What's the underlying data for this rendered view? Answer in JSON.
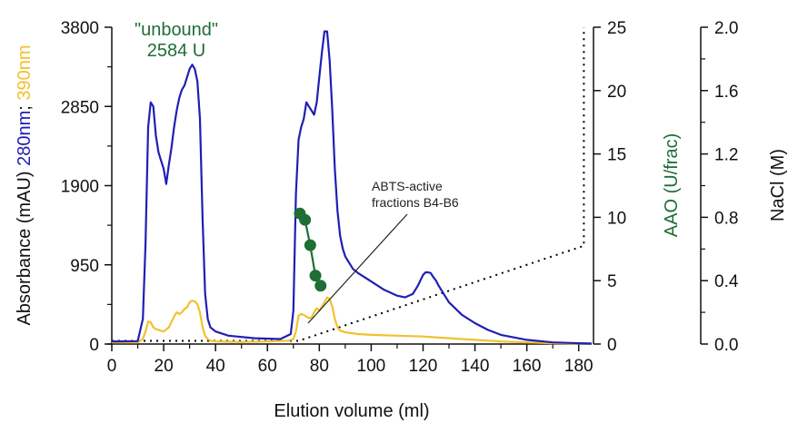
{
  "chart_data": {
    "type": "line",
    "xlabel": "Elution volume (ml)",
    "xlim": [
      0,
      185
    ],
    "xticks": [
      0,
      20,
      40,
      60,
      80,
      100,
      120,
      140,
      160,
      180
    ],
    "y_left": {
      "label_parts": [
        {
          "text": "Absorbance (mAU) ",
          "color": "#000000"
        },
        {
          "text": "280nm",
          "color": "#1f1fb4"
        },
        {
          "text": "; ",
          "color": "#000000"
        },
        {
          "text": "390nm",
          "color": "#f2c12e"
        }
      ],
      "ylim": [
        0,
        3800
      ],
      "ticks": [
        0,
        950,
        1900,
        2850,
        3800
      ]
    },
    "y_right1": {
      "label": "AAO (U/frac)",
      "color": "#1e6e36",
      "ylim": [
        0,
        25
      ],
      "ticks": [
        0,
        5,
        10,
        15,
        20,
        25
      ]
    },
    "y_right2": {
      "label": "NaCl (M)",
      "ylim": [
        0,
        2.0
      ],
      "ticks": [
        "0.0",
        "0.4",
        "0.8",
        "1.2",
        "1.6",
        "2.0"
      ]
    },
    "annotations": {
      "unbound_line1": "\"unbound\"",
      "unbound_line2": "2584 U",
      "abts_line1": "ABTS-active",
      "abts_line2": "fractions B4-B6"
    },
    "series": [
      {
        "name": "280nm",
        "axis": "left",
        "color": "#1f1fb4",
        "x": [
          0,
          10,
          12,
          13,
          14,
          15,
          16,
          17,
          18,
          19,
          20,
          21,
          22,
          23,
          24,
          25,
          26,
          27,
          28,
          29,
          30,
          31,
          32,
          33,
          34,
          35,
          36,
          37,
          38,
          40,
          45,
          55,
          65,
          69,
          70,
          71,
          72,
          73,
          74,
          75,
          76,
          77,
          78,
          79,
          80,
          81,
          82,
          83,
          84,
          85,
          86,
          87,
          88,
          89,
          90,
          91,
          92,
          93,
          95,
          100,
          105,
          110,
          113,
          116,
          118,
          120,
          121,
          122,
          123,
          124,
          125,
          126,
          128,
          130,
          135,
          140,
          145,
          150,
          160,
          170,
          180,
          185
        ],
        "y": [
          30,
          35,
          300,
          1200,
          2600,
          2900,
          2850,
          2500,
          2300,
          2200,
          2100,
          1920,
          2150,
          2350,
          2600,
          2800,
          2950,
          3050,
          3100,
          3200,
          3300,
          3350,
          3300,
          3150,
          2700,
          1500,
          600,
          300,
          200,
          150,
          100,
          70,
          60,
          120,
          400,
          1800,
          2450,
          2600,
          2700,
          2900,
          2850,
          2800,
          2750,
          2900,
          3200,
          3500,
          3750,
          3750,
          3400,
          2800,
          2100,
          1600,
          1300,
          1150,
          1050,
          1000,
          950,
          900,
          850,
          750,
          650,
          580,
          560,
          600,
          700,
          830,
          860,
          860,
          850,
          800,
          760,
          700,
          600,
          500,
          350,
          250,
          170,
          110,
          50,
          20,
          10,
          5
        ]
      },
      {
        "name": "390nm",
        "axis": "left",
        "color": "#f2c12e",
        "x": [
          0,
          10,
          12,
          13,
          14,
          15,
          16,
          17,
          18,
          20,
          22,
          24,
          25,
          26,
          27,
          28,
          29,
          30,
          31,
          32,
          33,
          34,
          35,
          36,
          37,
          38,
          40,
          50,
          60,
          68,
          70,
          71,
          72,
          73,
          74,
          75,
          76,
          77,
          78,
          79,
          80,
          81,
          82,
          83,
          84,
          85,
          86,
          87,
          88,
          90,
          95,
          100,
          110,
          120,
          130,
          140,
          150,
          160,
          170,
          180,
          185
        ],
        "y": [
          20,
          20,
          60,
          150,
          270,
          260,
          200,
          180,
          170,
          150,
          200,
          330,
          380,
          360,
          380,
          420,
          440,
          500,
          520,
          510,
          480,
          380,
          200,
          100,
          60,
          40,
          30,
          25,
          30,
          40,
          60,
          150,
          340,
          360,
          350,
          330,
          310,
          320,
          380,
          430,
          400,
          450,
          500,
          560,
          540,
          450,
          300,
          200,
          160,
          140,
          120,
          110,
          100,
          90,
          70,
          50,
          30,
          20,
          10,
          5,
          5
        ]
      },
      {
        "name": "AAO",
        "axis": "right1",
        "color": "#1e6e36",
        "markers": true,
        "x": [
          72.5,
          74.5,
          76.5,
          78.5,
          80.5
        ],
        "y": [
          10.3,
          9.8,
          7.8,
          5.4,
          4.6
        ]
      },
      {
        "name": "NaCl",
        "axis": "right2",
        "color": "#000000",
        "dotted": true,
        "x": [
          0,
          72,
          182,
          182
        ],
        "y": [
          0.02,
          0.02,
          0.62,
          2.0
        ]
      }
    ]
  }
}
